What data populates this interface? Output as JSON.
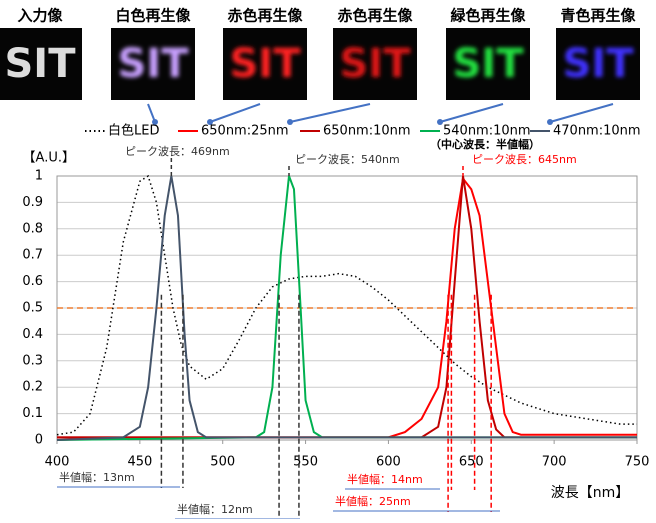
{
  "panels": [
    {
      "label": "入力像",
      "color": "#dddddd"
    },
    {
      "label": "白色再生像",
      "color": "#c8a0ff"
    },
    {
      "label": "赤色再生像",
      "color": "#ff2020"
    },
    {
      "label": "赤色再生像",
      "color": "#e01818"
    },
    {
      "label": "緑色再生像",
      "color": "#20e040"
    },
    {
      "label": "青色再生像",
      "color": "#4030ff"
    }
  ],
  "panel_text": "SIT",
  "chart_data": {
    "type": "line",
    "y_unit": "【A.U.】",
    "x_label": "波長【nm】",
    "legend_note": "（中心波長：半値幅）",
    "xlim": [
      400,
      750
    ],
    "xticks": [
      400,
      450,
      500,
      550,
      600,
      650,
      700,
      750
    ],
    "ylim": [
      0,
      1
    ],
    "yticks": [
      0,
      0.1,
      0.2,
      0.3,
      0.4,
      0.5,
      0.6,
      0.7,
      0.8,
      0.9,
      1
    ],
    "grid": true,
    "series": [
      {
        "name": "白色LED",
        "color": "#000000",
        "dash": "dotted",
        "x": [
          400,
          410,
          420,
          430,
          440,
          450,
          455,
          460,
          465,
          470,
          475,
          480,
          490,
          500,
          510,
          520,
          530,
          540,
          550,
          560,
          570,
          580,
          590,
          600,
          610,
          620,
          630,
          640,
          650,
          660,
          670,
          680,
          690,
          700,
          720,
          740,
          750
        ],
        "values": [
          0.02,
          0.03,
          0.1,
          0.35,
          0.75,
          0.98,
          1.0,
          0.9,
          0.7,
          0.5,
          0.36,
          0.28,
          0.23,
          0.27,
          0.38,
          0.5,
          0.58,
          0.61,
          0.62,
          0.62,
          0.63,
          0.62,
          0.58,
          0.53,
          0.47,
          0.41,
          0.35,
          0.29,
          0.24,
          0.2,
          0.17,
          0.14,
          0.12,
          0.1,
          0.08,
          0.06,
          0.06
        ]
      },
      {
        "name": "650nm:25nm",
        "color": "#ff0000",
        "x": [
          400,
          600,
          610,
          620,
          630,
          635,
          640,
          645,
          650,
          655,
          660,
          665,
          670,
          675,
          680,
          750
        ],
        "values": [
          0.01,
          0.01,
          0.03,
          0.08,
          0.2,
          0.45,
          0.8,
          0.99,
          0.95,
          0.85,
          0.6,
          0.35,
          0.1,
          0.03,
          0.02,
          0.02
        ]
      },
      {
        "name": "650nm:10nm",
        "color": "#c00000",
        "x": [
          400,
          620,
          630,
          635,
          640,
          645,
          650,
          655,
          660,
          665,
          670,
          750
        ],
        "values": [
          0.01,
          0.01,
          0.05,
          0.2,
          0.6,
          1.0,
          0.8,
          0.45,
          0.15,
          0.04,
          0.01,
          0.01
        ]
      },
      {
        "name": "540nm:10nm",
        "color": "#00b050",
        "x": [
          400,
          520,
          525,
          530,
          535,
          540,
          543,
          547,
          550,
          555,
          560,
          750
        ],
        "values": [
          0,
          0.01,
          0.03,
          0.2,
          0.7,
          1.0,
          0.95,
          0.5,
          0.15,
          0.03,
          0.01,
          0.01
        ]
      },
      {
        "name": "470nm:10nm",
        "color": "#44546a",
        "x": [
          400,
          440,
          450,
          455,
          460,
          465,
          469,
          473,
          477,
          480,
          485,
          490,
          750
        ],
        "values": [
          0,
          0.01,
          0.05,
          0.2,
          0.5,
          0.85,
          1.0,
          0.85,
          0.4,
          0.15,
          0.03,
          0.01,
          0.01
        ]
      }
    ],
    "half_level": {
      "value": 0.5,
      "color": "#ed7d31"
    },
    "peaks": [
      {
        "label": "ピーク波長：469nm",
        "x": 469,
        "color": "#333333"
      },
      {
        "label": "ピーク波長：540nm",
        "x": 540,
        "color": "#333333"
      },
      {
        "label": "ピーク波長：645nm",
        "x": 645,
        "color": "#ff0000"
      }
    ],
    "half_widths": [
      {
        "label": "半値幅：13nm",
        "x": [
          463,
          476
        ],
        "color": "#333333"
      },
      {
        "label": "半値幅：12nm",
        "x": [
          534,
          546
        ],
        "color": "#333333"
      },
      {
        "label": "半値幅：14nm",
        "x": [
          638,
          652
        ],
        "color": "#ff0000"
      },
      {
        "label": "半値幅：25nm",
        "x": [
          636,
          662
        ],
        "color": "#ff0000"
      }
    ]
  }
}
